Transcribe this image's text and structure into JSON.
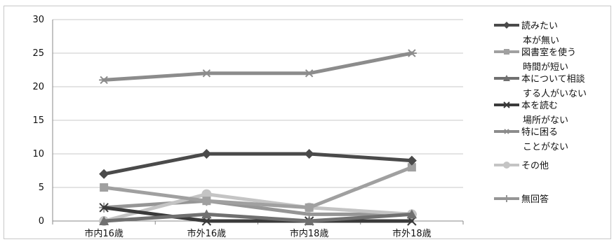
{
  "chart_data": {
    "type": "line",
    "title": "",
    "xlabel": "",
    "ylabel": "",
    "categories": [
      "市内16歳",
      "市外16歳",
      "市内18歳",
      "市外18歳"
    ],
    "ylim": [
      0,
      30
    ],
    "yticks": [
      0,
      5,
      10,
      15,
      20,
      25,
      30
    ],
    "grid": true,
    "legend_position": "right",
    "series": [
      {
        "name": "読みたい\n本が無い",
        "values": [
          7,
          10,
          10,
          9
        ],
        "color": "#4a4a4a",
        "marker": "diamond"
      },
      {
        "name": "図書室を使う\n時間が短い",
        "values": [
          5,
          3,
          2,
          8
        ],
        "color": "#a0a0a0",
        "marker": "square"
      },
      {
        "name": "本について相談\nする人がいない",
        "values": [
          0,
          1,
          0,
          1
        ],
        "color": "#707070",
        "marker": "triangle"
      },
      {
        "name": "本を読む\n場所がない",
        "values": [
          2,
          0,
          0,
          0
        ],
        "color": "#3a3a3a",
        "marker": "x"
      },
      {
        "name": "特に困る\nことがない",
        "values": [
          21,
          22,
          22,
          25
        ],
        "color": "#8c8c8c",
        "marker": "asterisk"
      },
      {
        "name": "その他",
        "values": [
          0,
          4,
          2,
          1
        ],
        "color": "#c4c4c4",
        "marker": "circle"
      },
      {
        "name": "無回答",
        "values": [
          2,
          3,
          1,
          1
        ],
        "color": "#969696",
        "marker": "plus"
      }
    ]
  }
}
